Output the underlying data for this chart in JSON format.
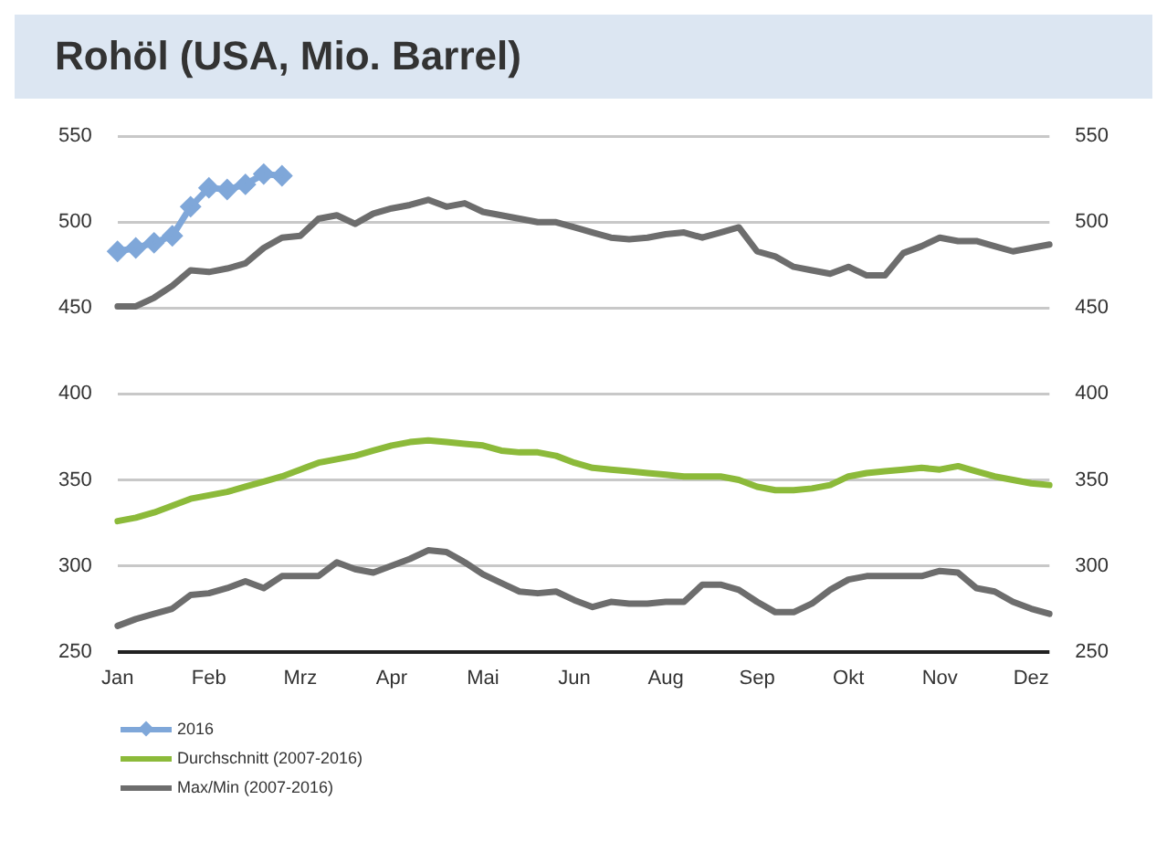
{
  "chart_data": {
    "type": "line",
    "title": "Rohöl (USA, Mio. Barrel)",
    "categories": [
      "Jan",
      null,
      null,
      null,
      null,
      "Feb",
      null,
      null,
      null,
      null,
      "Mrz",
      null,
      null,
      null,
      null,
      "Apr",
      null,
      null,
      null,
      null,
      "Mai",
      null,
      null,
      null,
      null,
      "Jun",
      null,
      null,
      null,
      null,
      "Aug",
      null,
      null,
      null,
      null,
      "Sep",
      null,
      null,
      null,
      null,
      "Okt",
      null,
      null,
      null,
      null,
      "Nov",
      null,
      null,
      null,
      null,
      "Dez",
      null
    ],
    "series": [
      {
        "name": "2016",
        "color": "#7fa7d9",
        "marker": "diamond",
        "values": [
          483,
          485,
          488,
          492,
          509,
          520,
          519,
          522,
          528,
          527,
          null,
          null,
          null,
          null,
          null,
          null,
          null,
          null,
          null,
          null,
          null,
          null,
          null,
          null,
          null,
          null,
          null,
          null,
          null,
          null,
          null,
          null,
          null,
          null,
          null,
          null,
          null,
          null,
          null,
          null,
          null,
          null,
          null,
          null,
          null,
          null,
          null,
          null,
          null,
          null,
          null,
          null
        ]
      },
      {
        "name": "Durchschnitt (2007-2016)",
        "color": "#8cba3a",
        "values": [
          326,
          328,
          331,
          335,
          339,
          341,
          343,
          346,
          349,
          352,
          356,
          360,
          362,
          364,
          367,
          370,
          372,
          373,
          372,
          371,
          370,
          367,
          366,
          366,
          364,
          360,
          357,
          356,
          355,
          354,
          353,
          352,
          352,
          352,
          350,
          346,
          344,
          344,
          345,
          347,
          352,
          354,
          355,
          356,
          357,
          356,
          358,
          355,
          352,
          350,
          348,
          347
        ]
      },
      {
        "name": "Max/Min (2007-2016)",
        "color": "#6d6d6d",
        "values": [
          451,
          451,
          456,
          463,
          472,
          471,
          473,
          476,
          485,
          491,
          492,
          502,
          504,
          499,
          505,
          508,
          510,
          513,
          509,
          511,
          506,
          504,
          502,
          500,
          500,
          497,
          494,
          491,
          490,
          491,
          493,
          494,
          491,
          494,
          497,
          483,
          480,
          474,
          472,
          470,
          474,
          469,
          469,
          482,
          486,
          491,
          489,
          489,
          486,
          483,
          485,
          487
        ]
      },
      {
        "color": "#6d6d6d",
        "values": [
          265,
          269,
          272,
          275,
          283,
          284,
          287,
          291,
          287,
          294,
          294,
          294,
          302,
          298,
          296,
          300,
          304,
          309,
          308,
          302,
          295,
          290,
          285,
          284,
          285,
          280,
          276,
          279,
          278,
          278,
          279,
          279,
          289,
          289,
          286,
          279,
          273,
          273,
          278,
          286,
          292,
          294,
          294,
          294,
          294,
          297,
          296,
          287,
          285,
          279,
          275,
          272
        ]
      }
    ],
    "ylim": [
      250,
      550
    ],
    "yticks": [
      250,
      300,
      350,
      400,
      450,
      500,
      550
    ],
    "y2lim": [
      250,
      550
    ],
    "y2ticks": [
      250,
      300,
      350,
      400,
      450,
      500,
      550
    ],
    "grid": "y",
    "legend": "bottom left",
    "line_style": "solid"
  }
}
